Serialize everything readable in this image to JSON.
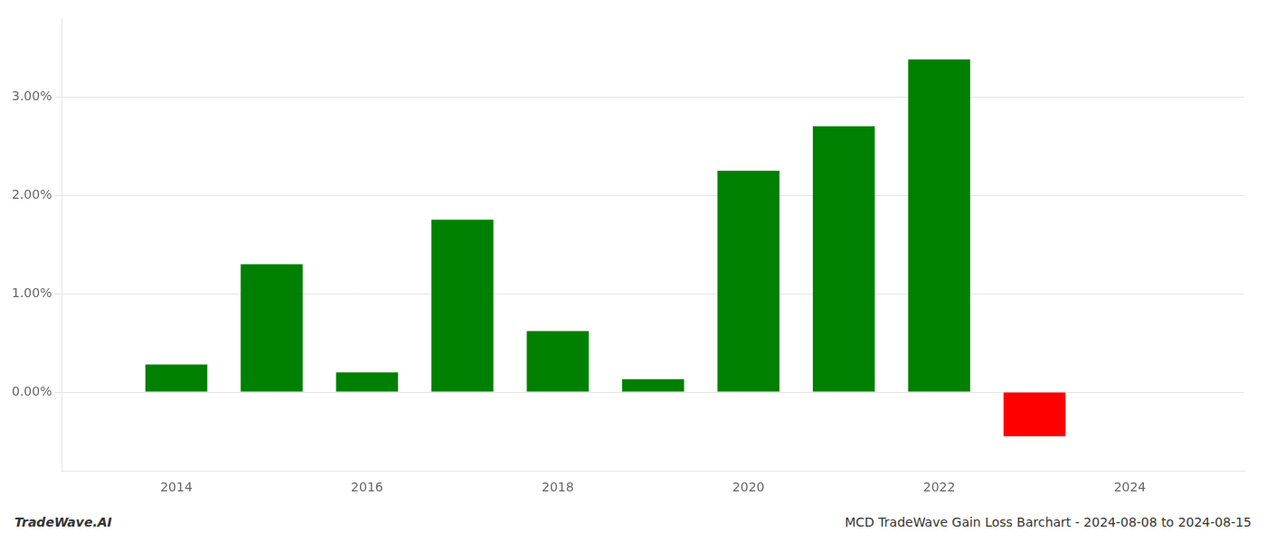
{
  "chart_data": {
    "type": "bar",
    "x": [
      2014,
      2015,
      2016,
      2017,
      2018,
      2019,
      2020,
      2021,
      2022,
      2023
    ],
    "values": [
      0.0028,
      0.013,
      0.002,
      0.0175,
      0.0062,
      0.0013,
      0.0225,
      0.027,
      0.0338,
      -0.0045
    ],
    "colors": [
      "#008000",
      "#008000",
      "#008000",
      "#008000",
      "#008000",
      "#008000",
      "#008000",
      "#008000",
      "#008000",
      "#ff0000"
    ],
    "xlim": [
      2012.8,
      2025.2
    ],
    "xticks": [
      2014,
      2016,
      2018,
      2020,
      2022,
      2024
    ],
    "ylim": [
      -0.008,
      0.038
    ],
    "yticks": [
      {
        "value": 0.0,
        "label": "0.00%"
      },
      {
        "value": 0.01,
        "label": "1.00%"
      },
      {
        "value": 0.02,
        "label": "2.00%"
      },
      {
        "value": 0.03,
        "label": "3.00%"
      }
    ],
    "grid": true,
    "annotations": [
      "TradeWave.AI",
      "MCD TradeWave Gain Loss Barchart - 2024-08-08 to 2024-08-15"
    ]
  }
}
